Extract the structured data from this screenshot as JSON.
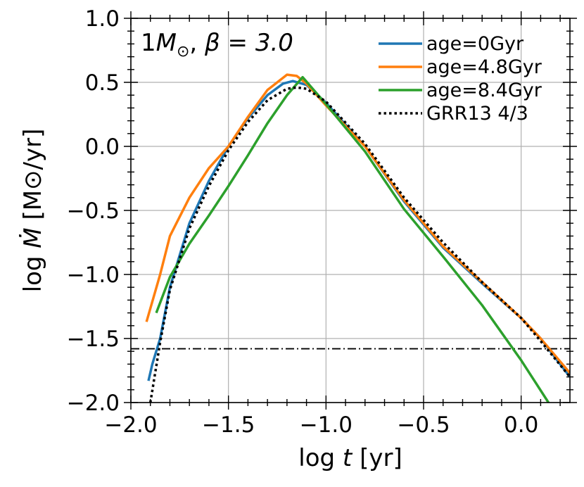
{
  "chart_data": {
    "type": "line",
    "title": "1M_⊙, β = 3.0",
    "title_parts": {
      "mass": "1",
      "mass_symbol": "M",
      "sun": "⊙",
      "sep": ", ",
      "beta": "β = 3.0"
    },
    "xlabel": "log t [yr]",
    "xlabel_parts": {
      "prefix": "log ",
      "var": "t",
      "suffix": " [yr]"
    },
    "ylabel": "log Ṁ [M⊙/yr]",
    "ylabel_parts": {
      "prefix": "log ",
      "var": "Ṁ",
      "suffix": " [M⊙/yr]"
    },
    "xlim": [
      -2.0,
      0.25
    ],
    "ylim": [
      -2.0,
      1.0
    ],
    "xticks": [
      -2.0,
      -1.5,
      -1.0,
      -0.5,
      0.0
    ],
    "xtick_labels": [
      "−2.0",
      "−1.5",
      "−1.0",
      "−0.5",
      "0.0"
    ],
    "yticks": [
      -2.0,
      -1.5,
      -1.0,
      -0.5,
      0.0,
      0.5,
      1.0
    ],
    "ytick_labels": [
      "−2.0",
      "−1.5",
      "−1.0",
      "−0.5",
      "0.0",
      "0.5",
      "1.0"
    ],
    "grid": true,
    "legend_position": "top-right",
    "hline": {
      "y": -1.58,
      "style": "dash-dot",
      "color": "#000000"
    },
    "series": [
      {
        "name": "age=0Gyr",
        "color": "#1f77b4",
        "dash": "solid",
        "x": [
          -1.91,
          -1.89,
          -1.85,
          -1.8,
          -1.7,
          -1.6,
          -1.5,
          -1.4,
          -1.3,
          -1.22,
          -1.17,
          -1.1,
          -1.0,
          -0.8,
          -0.6,
          -0.4,
          -0.2,
          0.0,
          0.1,
          0.25
        ],
        "y": [
          -1.83,
          -1.7,
          -1.5,
          -1.1,
          -0.6,
          -0.27,
          0.0,
          0.22,
          0.4,
          0.49,
          0.51,
          0.48,
          0.34,
          0.0,
          -0.43,
          -0.79,
          -1.07,
          -1.34,
          -1.5,
          -1.8
        ]
      },
      {
        "name": "age=4.8Gyr",
        "color": "#ff7f0e",
        "dash": "solid",
        "x": [
          -1.92,
          -1.85,
          -1.8,
          -1.7,
          -1.6,
          -1.5,
          -1.4,
          -1.3,
          -1.2,
          -1.15,
          -1.1,
          -1.0,
          -0.8,
          -0.6,
          -0.4,
          -0.2,
          0.0,
          0.1,
          0.25
        ],
        "y": [
          -1.37,
          -1.0,
          -0.7,
          -0.4,
          -0.17,
          0.0,
          0.23,
          0.44,
          0.56,
          0.55,
          0.49,
          0.32,
          0.0,
          -0.42,
          -0.78,
          -1.06,
          -1.34,
          -1.5,
          -1.77
        ]
      },
      {
        "name": "age=8.4Gyr",
        "color": "#2ca02c",
        "dash": "solid",
        "x": [
          -1.87,
          -1.8,
          -1.7,
          -1.6,
          -1.5,
          -1.4,
          -1.3,
          -1.2,
          -1.12,
          -1.0,
          -0.8,
          -0.6,
          -0.4,
          -0.2,
          0.0,
          0.14
        ],
        "y": [
          -1.3,
          -1.02,
          -0.76,
          -0.54,
          -0.31,
          -0.07,
          0.18,
          0.4,
          0.54,
          0.33,
          -0.04,
          -0.49,
          -0.86,
          -1.24,
          -1.67,
          -2.0
        ]
      },
      {
        "name": "GRR13 4/3",
        "color": "#000000",
        "dash": "dotted",
        "x": [
          -1.9,
          -1.85,
          -1.8,
          -1.7,
          -1.6,
          -1.5,
          -1.4,
          -1.3,
          -1.2,
          -1.15,
          -1.1,
          -1.0,
          -0.8,
          -0.6,
          -0.4,
          -0.2,
          0.0,
          0.1,
          0.25
        ],
        "y": [
          -2.0,
          -1.53,
          -1.12,
          -0.64,
          -0.31,
          -0.03,
          0.19,
          0.36,
          0.45,
          0.46,
          0.45,
          0.35,
          0.02,
          -0.4,
          -0.75,
          -1.06,
          -1.34,
          -1.52,
          -1.8
        ]
      }
    ]
  }
}
